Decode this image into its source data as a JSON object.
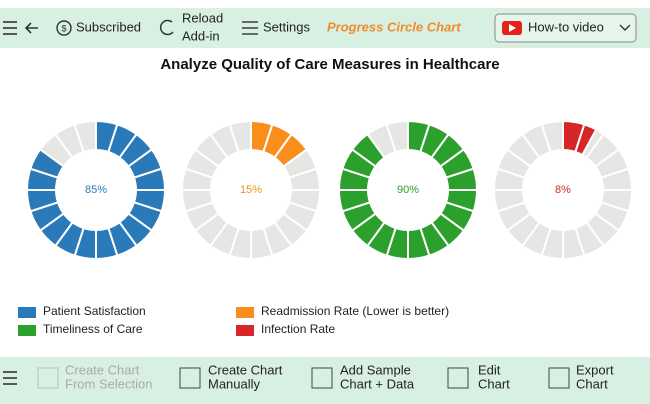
{
  "toolbar": {
    "subscribed": "Subscribed",
    "reload": [
      "Reload",
      "Add-in"
    ],
    "settings": "Settings",
    "chart_name": "Progress Circle Chart",
    "video": "How-to video"
  },
  "bottom_toolbar": {
    "items": [
      [
        "Create Chart",
        "From Selection"
      ],
      [
        "Create Chart",
        "Manually"
      ],
      [
        "Add Sample",
        "Chart + Data"
      ],
      [
        "Edit",
        "Chart"
      ],
      [
        "Export",
        "Chart"
      ]
    ]
  },
  "chart_data": {
    "type": "progress-circle",
    "title": "Analyze Quality of Care Measures in Healthcare",
    "categories": [
      "Patient Satisfaction",
      "Readmission Rate (Lower is better)",
      "Timeliness of Care",
      "Infection Rate"
    ],
    "values": [
      85,
      15,
      90,
      8
    ],
    "value_labels": [
      "85%",
      "15%",
      "90%",
      "8%"
    ],
    "colors": [
      "#2a7ab9",
      "#f98e1c",
      "#2ca02c",
      "#d62728"
    ],
    "ylim": [
      0,
      100
    ],
    "segments": 20,
    "track_color": "#e6e6e4"
  }
}
